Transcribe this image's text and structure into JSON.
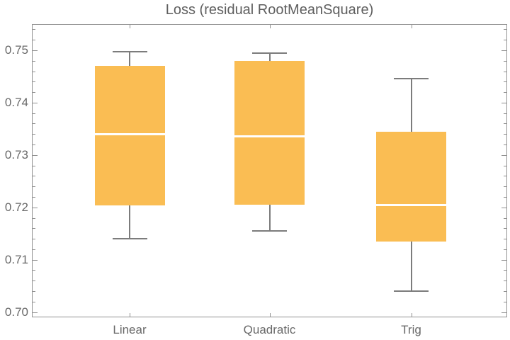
{
  "title": "Loss (residual RootMeanSquare)",
  "colors": {
    "box_fill": "#FABD53",
    "median_line": "#FFFFFF",
    "whisker": "#7C7C7C",
    "frame": "#919191",
    "text": "#696969"
  },
  "chart_data": {
    "type": "boxwhisker",
    "title": "Loss (residual RootMeanSquare)",
    "categories": [
      "Linear",
      "Quadratic",
      "Trig"
    ],
    "series": [
      {
        "name": "Linear",
        "whisker_low": 0.714,
        "q1": 0.7204,
        "median": 0.7339,
        "q3": 0.747,
        "whisker_high": 0.7497
      },
      {
        "name": "Quadratic",
        "whisker_low": 0.7155,
        "q1": 0.7205,
        "median": 0.7335,
        "q3": 0.748,
        "whisker_high": 0.7495
      },
      {
        "name": "Trig",
        "whisker_low": 0.704,
        "q1": 0.7135,
        "median": 0.7204,
        "q3": 0.7345,
        "whisker_high": 0.7446
      }
    ],
    "ylim": [
      0.699,
      0.755
    ],
    "y_major_ticks": [
      0.7,
      0.71,
      0.72,
      0.73,
      0.74,
      0.75
    ],
    "y_tick_labels": [
      "0.70",
      "0.71",
      "0.72",
      "0.73",
      "0.74",
      "0.75"
    ],
    "y_minor_step": 0.002,
    "xlabel": "",
    "ylabel": "",
    "grid": false,
    "legend": "none",
    "frame": true
  }
}
